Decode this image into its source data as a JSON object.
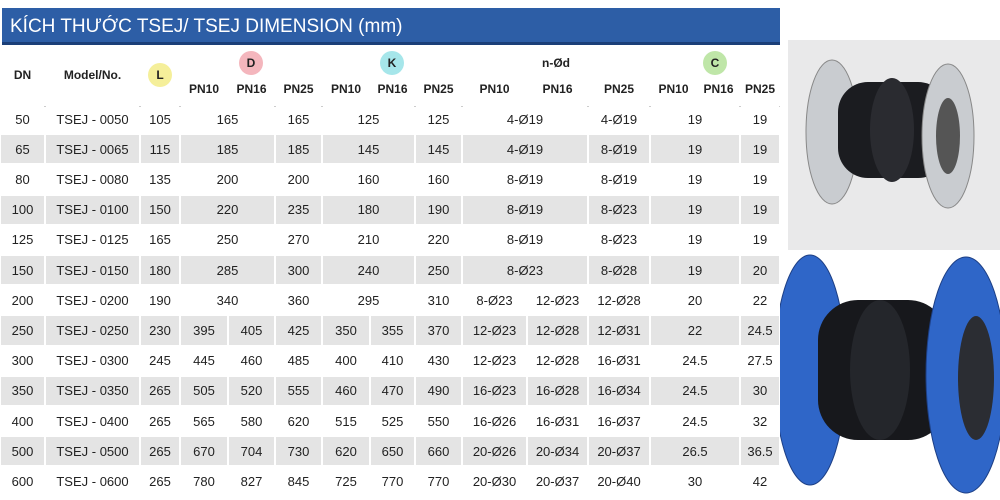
{
  "title": "KÍCH THƯỚC TSEJ/ TSEJ DIMENSION (mm)",
  "table": {
    "header": {
      "dn": "DN",
      "model": "Model/No.",
      "l": "L",
      "groups": [
        {
          "label": "D",
          "subs": [
            "PN10",
            "PN16",
            "PN25"
          ]
        },
        {
          "label": "K",
          "subs": [
            "PN10",
            "PN16",
            "PN25"
          ]
        },
        {
          "label": "n-Ød",
          "subs": [
            "PN10",
            "PN16",
            "PN25"
          ]
        },
        {
          "label": "C",
          "subs": [
            "PN10",
            "PN16",
            "PN25"
          ]
        }
      ]
    },
    "rows": [
      {
        "dn": 50,
        "model": "TSEJ - 0050",
        "l": 105,
        "d": [
          165,
          165
        ],
        "k": [
          125,
          125
        ],
        "nd": [
          "4-Ø19",
          "4-Ø19"
        ],
        "c": [
          19,
          19
        ]
      },
      {
        "dn": 65,
        "model": "TSEJ - 0065",
        "l": 115,
        "d": [
          185,
          185
        ],
        "k": [
          145,
          145
        ],
        "nd": [
          "4-Ø19",
          "8-Ø19"
        ],
        "c": [
          19,
          19
        ]
      },
      {
        "dn": 80,
        "model": "TSEJ - 0080",
        "l": 135,
        "d": [
          200,
          200
        ],
        "k": [
          160,
          160
        ],
        "nd": [
          "8-Ø19",
          "8-Ø19"
        ],
        "c": [
          19,
          19
        ]
      },
      {
        "dn": 100,
        "model": "TSEJ - 0100",
        "l": 150,
        "d": [
          220,
          235
        ],
        "k": [
          180,
          190
        ],
        "nd": [
          "8-Ø19",
          "8-Ø23"
        ],
        "c": [
          19,
          19
        ]
      },
      {
        "dn": 125,
        "model": "TSEJ - 0125",
        "l": 165,
        "d": [
          250,
          270
        ],
        "k": [
          210,
          220
        ],
        "nd": [
          "8-Ø19",
          "8-Ø23"
        ],
        "c": [
          19,
          19
        ]
      },
      {
        "dn": 150,
        "model": "TSEJ - 0150",
        "l": 180,
        "d": [
          285,
          300
        ],
        "k": [
          240,
          250
        ],
        "nd": [
          "8-Ø23",
          "8-Ø28"
        ],
        "c": [
          19,
          20
        ]
      },
      {
        "dn": 200,
        "model": "TSEJ - 0200",
        "l": 190,
        "d": [
          340,
          360
        ],
        "k": [
          295,
          310
        ],
        "nd": [
          "8-Ø23",
          "12-Ø23",
          "12-Ø28"
        ],
        "c": [
          20,
          22
        ]
      },
      {
        "dn": 250,
        "model": "TSEJ - 0250",
        "l": 230,
        "d": [
          395,
          405,
          425
        ],
        "k": [
          350,
          355,
          370
        ],
        "nd": [
          "12-Ø23",
          "12-Ø28",
          "12-Ø31"
        ],
        "c": [
          22,
          24.5
        ]
      },
      {
        "dn": 300,
        "model": "TSEJ - 0300",
        "l": 245,
        "d": [
          445,
          460,
          485
        ],
        "k": [
          400,
          410,
          430
        ],
        "nd": [
          "12-Ø23",
          "12-Ø28",
          "16-Ø31"
        ],
        "c": [
          24.5,
          27.5
        ]
      },
      {
        "dn": 350,
        "model": "TSEJ - 0350",
        "l": 265,
        "d": [
          505,
          520,
          555
        ],
        "k": [
          460,
          470,
          490
        ],
        "nd": [
          "16-Ø23",
          "16-Ø28",
          "16-Ø34"
        ],
        "c": [
          24.5,
          30
        ]
      },
      {
        "dn": 400,
        "model": "TSEJ - 0400",
        "l": 265,
        "d": [
          565,
          580,
          620
        ],
        "k": [
          515,
          525,
          550
        ],
        "nd": [
          "16-Ø26",
          "16-Ø31",
          "16-Ø37"
        ],
        "c": [
          24.5,
          32
        ]
      },
      {
        "dn": 500,
        "model": "TSEJ - 0500",
        "l": 265,
        "d": [
          670,
          704,
          730
        ],
        "k": [
          620,
          650,
          660
        ],
        "nd": [
          "20-Ø26",
          "20-Ø34",
          "20-Ø37"
        ],
        "c": [
          26.5,
          36.5
        ]
      },
      {
        "dn": 600,
        "model": "TSEJ - 0600",
        "l": 265,
        "d": [
          780,
          827,
          845
        ],
        "k": [
          725,
          770,
          770
        ],
        "nd": [
          "20-Ø30",
          "20-Ø37",
          "20-Ø40"
        ],
        "c": [
          30,
          42
        ]
      }
    ]
  }
}
